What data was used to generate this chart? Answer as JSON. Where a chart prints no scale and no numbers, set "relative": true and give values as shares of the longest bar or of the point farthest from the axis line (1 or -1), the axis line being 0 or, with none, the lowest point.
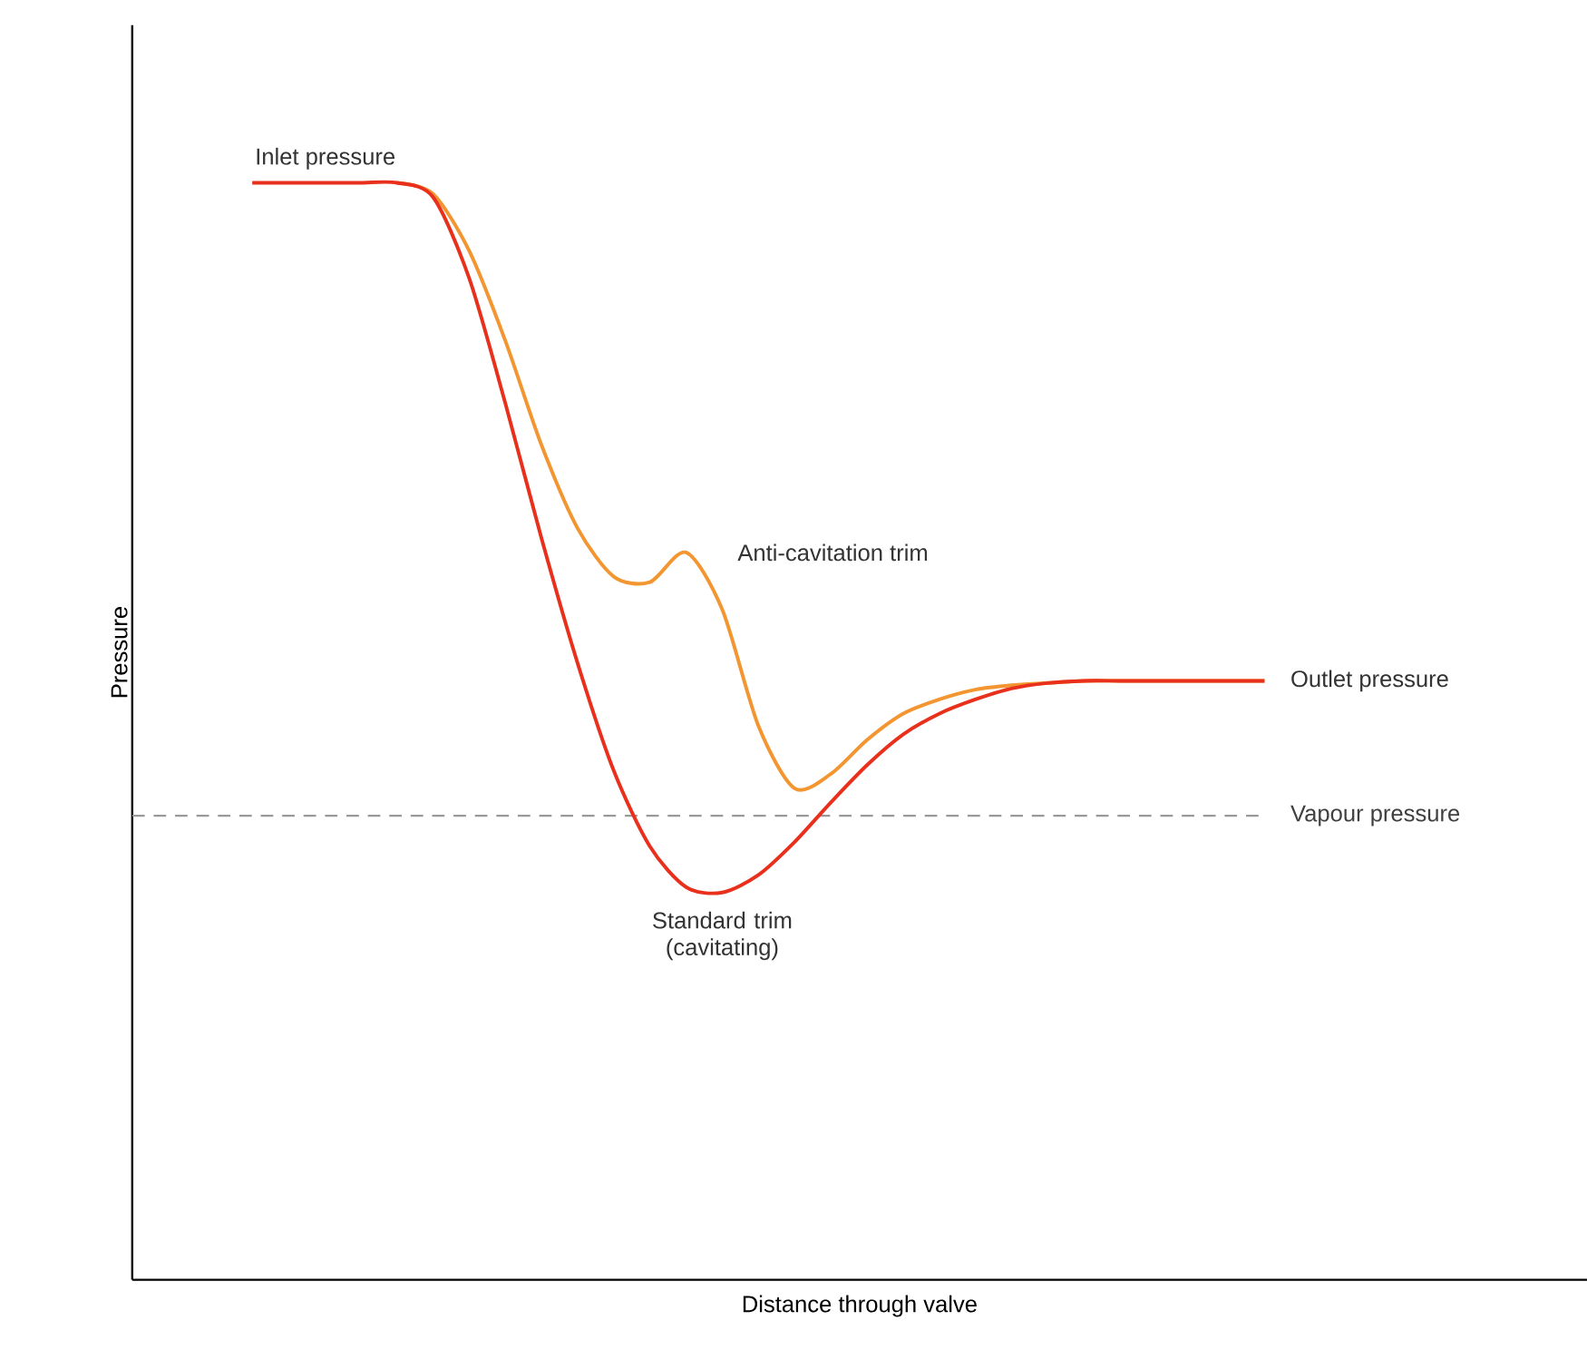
{
  "chart_data": {
    "type": "line",
    "relative": true,
    "xlabel": "Distance through valve",
    "ylabel": "Pressure",
    "marker": "none",
    "line_style": "solid",
    "categories": [
      null,
      null,
      null,
      null,
      null,
      null,
      null,
      null,
      null,
      null,
      null,
      null,
      null,
      null,
      null,
      null,
      null,
      null,
      null,
      null,
      null,
      null,
      null,
      null,
      null,
      null,
      null,
      null,
      null
    ],
    "series": [
      {
        "name": "Anti-cavitation trim",
        "color": "#f39530",
        "values": [
          null,
          null,
          null,
          null,
          1.0,
          0.99,
          0.938,
          0.856,
          0.761,
          0.685,
          0.641,
          0.636,
          0.663,
          0.611,
          0.505,
          0.448,
          0.461,
          0.492,
          0.516,
          0.529,
          0.538,
          0.542,
          0.544,
          0.546,
          0.546,
          0.546,
          0.546,
          0.546,
          0.546
        ]
      },
      {
        "name": "Standard trim (cavitating)",
        "color": "#e8301c",
        "values": [
          1.0,
          1.0,
          1.0,
          1.0,
          1.0,
          0.987,
          0.913,
          0.799,
          0.676,
          0.562,
          0.464,
          0.395,
          0.358,
          0.353,
          0.369,
          0.399,
          0.435,
          0.469,
          0.497,
          0.516,
          0.529,
          0.539,
          0.544,
          0.546,
          0.546,
          0.546,
          0.546,
          0.546,
          0.546
        ]
      }
    ],
    "ref_lines": [
      {
        "axis": "y",
        "value": 0.423,
        "label": "Vapour pressure",
        "color": "#999999",
        "line_style": "dashed"
      }
    ],
    "annotations": [
      "Inlet pressure",
      "Outlet pressure"
    ]
  }
}
